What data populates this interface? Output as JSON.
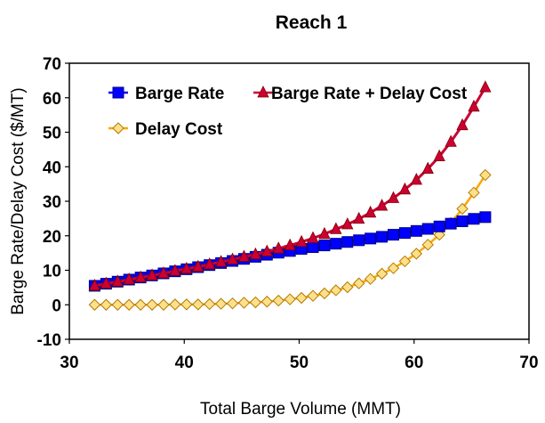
{
  "chart_data": {
    "type": "line",
    "title": "Reach 1",
    "xlabel": "Total Barge Volume (MMT)",
    "ylabel": "Barge Rate/Delay Cost ($/MT)",
    "xlim": [
      30,
      70
    ],
    "ylim": [
      -10,
      70
    ],
    "x_ticks": [
      "30",
      "40",
      "50",
      "60",
      "70"
    ],
    "y_ticks": [
      "-10",
      "0",
      "10",
      "20",
      "30",
      "40",
      "50",
      "60",
      "70"
    ],
    "grid": false,
    "legend_position": "top-left",
    "x": [
      32.2,
      33.2,
      34.2,
      35.2,
      36.2,
      37.2,
      38.2,
      39.2,
      40.2,
      41.2,
      42.2,
      43.2,
      44.2,
      45.2,
      46.2,
      47.2,
      48.2,
      49.2,
      50.2,
      51.2,
      52.2,
      53.2,
      54.2,
      55.2,
      56.2,
      57.2,
      58.2,
      59.2,
      60.2,
      61.2,
      62.2,
      63.2,
      64.2,
      65.2,
      66.2
    ],
    "series": [
      {
        "name": "Barge Rate",
        "color": "#0000ff",
        "marker": "square",
        "values": [
          5.5,
          6.1,
          6.7,
          7.3,
          7.9,
          8.5,
          9.1,
          9.7,
          10.3,
          10.9,
          11.5,
          12.1,
          12.7,
          13.3,
          13.9,
          14.5,
          15.1,
          15.6,
          16.2,
          16.7,
          17.2,
          17.7,
          18.2,
          18.7,
          19.2,
          19.7,
          20.3,
          20.8,
          21.4,
          22.0,
          22.7,
          23.5,
          24.2,
          24.9,
          25.4
        ]
      },
      {
        "name": "Barge Rate + Delay Cost",
        "color": "#cc0033",
        "marker": "triangle",
        "values": [
          5.5,
          6.1,
          6.7,
          7.3,
          7.9,
          8.5,
          9.1,
          9.8,
          10.4,
          11.0,
          11.7,
          12.4,
          13.1,
          13.9,
          14.6,
          15.4,
          16.3,
          17.2,
          18.2,
          19.3,
          20.5,
          21.9,
          23.3,
          24.9,
          26.7,
          28.7,
          30.9,
          33.4,
          36.2,
          39.4,
          43.0,
          47.2,
          52.0,
          57.4,
          63.0
        ]
      },
      {
        "name": "Delay Cost",
        "color": "#ffa500",
        "marker": "diamond",
        "values": [
          0.0,
          0.0,
          0.0,
          0.0,
          0.0,
          0.0,
          0.0,
          0.1,
          0.1,
          0.1,
          0.2,
          0.3,
          0.4,
          0.6,
          0.7,
          0.9,
          1.2,
          1.6,
          2.0,
          2.6,
          3.3,
          4.2,
          5.1,
          6.2,
          7.5,
          9.0,
          10.6,
          12.6,
          14.8,
          17.4,
          20.3,
          23.7,
          27.8,
          32.5,
          37.6
        ]
      }
    ]
  }
}
